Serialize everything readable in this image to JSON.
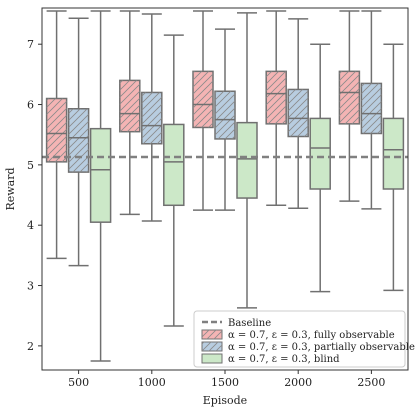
{
  "chart_data": {
    "type": "box",
    "title": "",
    "xlabel": "Episode",
    "ylabel": "Reward",
    "categories": [
      "500",
      "1000",
      "1500",
      "2000",
      "2500"
    ],
    "ylim": [
      1.6,
      7.6
    ],
    "yticks": [
      2,
      3,
      4,
      5,
      6,
      7
    ],
    "grid": false,
    "legend_position": "lower-right",
    "baseline": {
      "label": "Baseline",
      "value": 5.13,
      "color": "#808080"
    },
    "series": [
      {
        "name": "α = 0.7, ε = 0.3, fully observable",
        "color": "#f4b4b4",
        "hatch": "diagonal",
        "boxes": [
          {
            "whislo": 3.45,
            "q1": 5.05,
            "med": 5.52,
            "q3": 6.1,
            "whishi": 7.55
          },
          {
            "whislo": 4.18,
            "q1": 5.55,
            "med": 5.85,
            "q3": 6.4,
            "whishi": 7.55
          },
          {
            "whislo": 4.25,
            "q1": 5.62,
            "med": 6.0,
            "q3": 6.55,
            "whishi": 7.55
          },
          {
            "whislo": 4.33,
            "q1": 5.68,
            "med": 6.18,
            "q3": 6.55,
            "whishi": 7.55
          },
          {
            "whislo": 4.4,
            "q1": 5.68,
            "med": 6.2,
            "q3": 6.55,
            "whishi": 7.55
          }
        ]
      },
      {
        "name": "α = 0.7, ε = 0.3, partially observable",
        "color": "#b8cde0",
        "hatch": "diagonal",
        "boxes": [
          {
            "whislo": 3.33,
            "q1": 4.88,
            "med": 5.45,
            "q3": 5.93,
            "whishi": 7.43
          },
          {
            "whislo": 4.07,
            "q1": 5.35,
            "med": 5.65,
            "q3": 6.2,
            "whishi": 7.5
          },
          {
            "whislo": 4.25,
            "q1": 5.43,
            "med": 5.75,
            "q3": 6.22,
            "whishi": 7.25
          },
          {
            "whislo": 4.28,
            "q1": 5.47,
            "med": 5.77,
            "q3": 6.25,
            "whishi": 7.42
          },
          {
            "whislo": 4.27,
            "q1": 5.52,
            "med": 5.85,
            "q3": 6.35,
            "whishi": 7.55
          }
        ]
      },
      {
        "name": "α = 0.7, ε = 0.3, blind",
        "color": "#cce8c8",
        "hatch": "none",
        "boxes": [
          {
            "whislo": 1.75,
            "q1": 4.05,
            "med": 4.92,
            "q3": 5.6,
            "whishi": 7.55
          },
          {
            "whislo": 2.33,
            "q1": 4.33,
            "med": 5.05,
            "q3": 5.67,
            "whishi": 7.15
          },
          {
            "whislo": 2.63,
            "q1": 4.45,
            "med": 5.1,
            "q3": 5.7,
            "whishi": 7.52
          },
          {
            "whislo": 2.9,
            "q1": 4.6,
            "med": 5.28,
            "q3": 5.77,
            "whishi": 7.0
          },
          {
            "whislo": 2.92,
            "q1": 4.6,
            "med": 5.25,
            "q3": 5.77,
            "whishi": 7.0
          }
        ]
      }
    ]
  }
}
